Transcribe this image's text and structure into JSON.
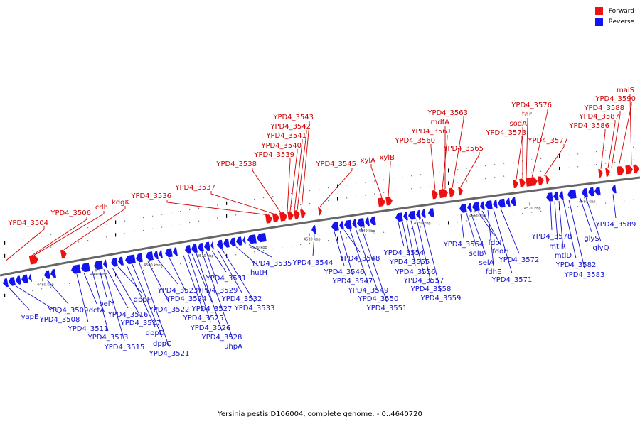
{
  "legend": {
    "forward_label": "Forward",
    "reverse_label": "Reverse",
    "forward_color": "#ee1111",
    "reverse_color": "#1414ee"
  },
  "caption": "Yersinia pestis D106004, complete genome. - 0..4640720",
  "scale": {
    "unit": "kbp",
    "ticks": [
      4480,
      4490,
      4500,
      4510,
      4520,
      4530,
      4540,
      4550,
      4560,
      4570,
      4580
    ]
  },
  "genes_forward": [
    "YPD4_3504",
    "YPD4_3506",
    "cdh",
    "kdgK",
    "YPD4_3536",
    "YPD4_3537",
    "YPD4_3538",
    "YPD4_3539",
    "YPD4_3540",
    "YPD4_3541",
    "YPD4_3542",
    "YPD4_3543",
    "YPD4_3545",
    "xylA",
    "xylB",
    "YPD4_3560",
    "YPD4_3561",
    "mdfA",
    "YPD4_3563",
    "YPD4_3565",
    "YPD4_3573",
    "sodA",
    "tar",
    "YPD4_3576",
    "YPD4_3577",
    "YPD4_3586",
    "YPD4_3587",
    "YPD4_3588",
    "YPD4_3590",
    "malS"
  ],
  "genes_reverse": [
    "yapE",
    "YPD4_3508",
    "YPD4_3509",
    "YPD4_3511",
    "dctA",
    "YPD4_3513",
    "pelY",
    "YPD4_3515",
    "YPD4_3516",
    "YPD4_3517",
    "dppF",
    "dppD",
    "dppC",
    "YPD4_3521",
    "YPD4_3522",
    "YPD4_3523",
    "YPD4_3524",
    "YPD4_3525",
    "YPD4_3526",
    "YPD4_3527",
    "YPD4_3528",
    "uhpA",
    "YPD4_3529",
    "YPD4_3531",
    "YPD4_3532",
    "YPD4_3533",
    "hutH",
    "YPD4_3535",
    "YPD4_3544",
    "YPD4_3546",
    "YPD4_3547",
    "YPD4_3548",
    "YPD4_3549",
    "YPD4_3550",
    "YPD4_3551",
    "YPD4_3554",
    "YPD4_3555",
    "YPD4_3556",
    "YPD4_3557",
    "YPD4_3558",
    "YPD4_3559",
    "YPD4_3564",
    "selB",
    "selA",
    "fdoI",
    "fdoH",
    "fdhE",
    "YPD4_3571",
    "YPD4_3572",
    "YPD4_3578",
    "mtlR",
    "mtlD",
    "YPD4_3582",
    "YPD4_3583",
    "glyS",
    "glyQ",
    "YPD4_3589"
  ]
}
